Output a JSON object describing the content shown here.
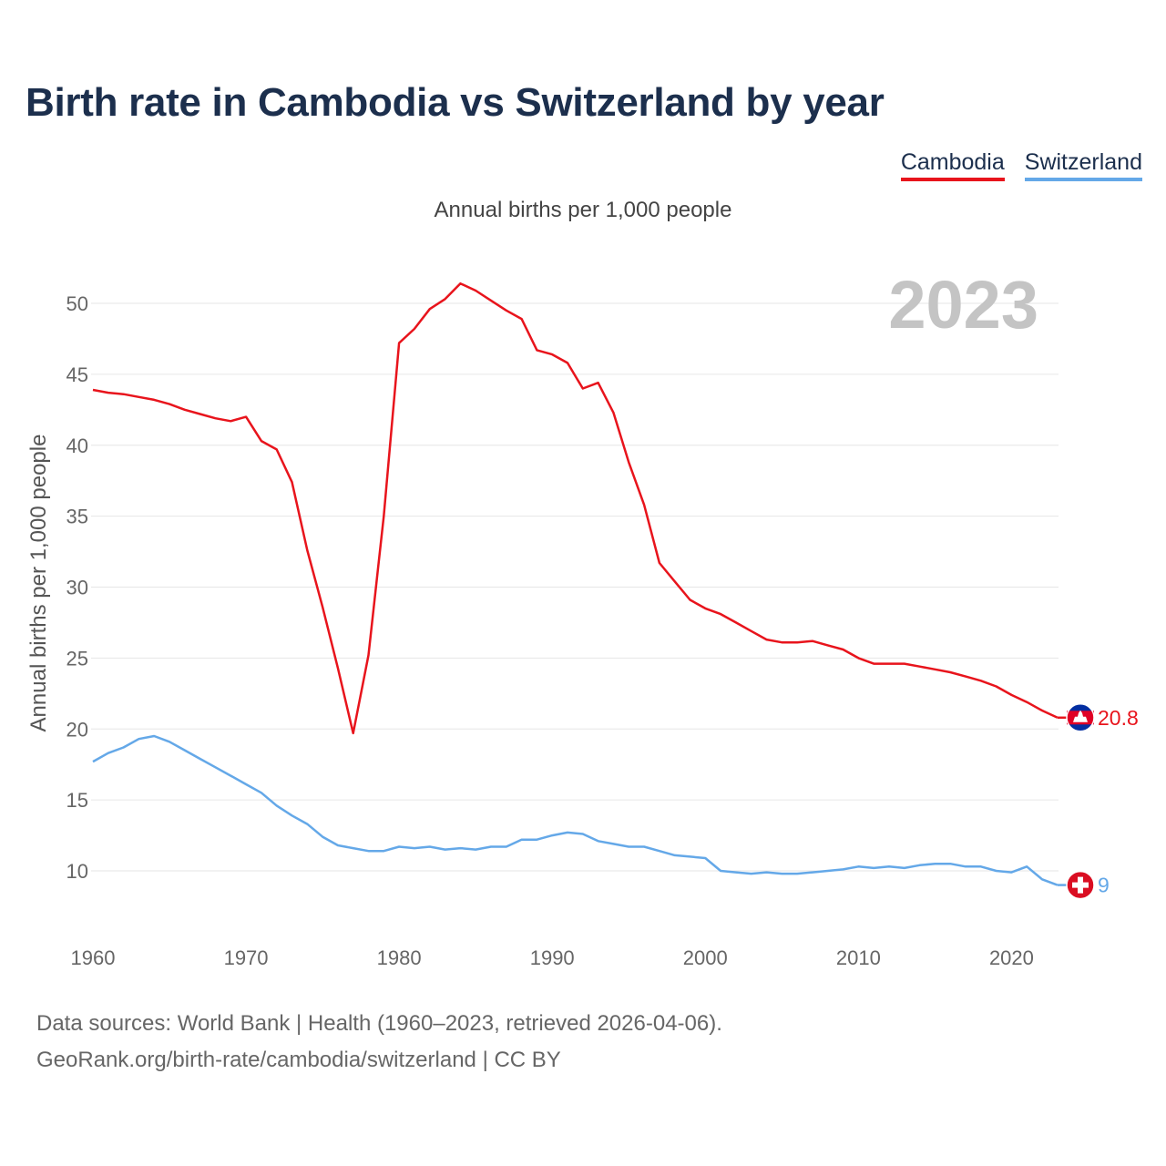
{
  "header": {
    "title": "Birth rate in Cambodia vs Switzerland by year",
    "subtitle": "Annual births per 1,000 people"
  },
  "legend": {
    "items": [
      {
        "label": "Cambodia",
        "color": "#e8141c"
      },
      {
        "label": "Switzerland",
        "color": "#64a8e8"
      }
    ]
  },
  "year_display": "2023",
  "footer": {
    "line1": "Data sources: World Bank | Health (1960–2023, retrieved 2026-04-06).",
    "line2": "GeoRank.org/birth-rate/cambodia/switzerland | CC BY"
  },
  "chart_data": {
    "type": "line",
    "title": "Birth rate in Cambodia vs Switzerland by year",
    "xlabel": "",
    "ylabel": "Annual births per 1,000 people",
    "xlim": [
      1960,
      2023
    ],
    "ylim": [
      6,
      53
    ],
    "x_ticks": [
      1960,
      1970,
      1980,
      1990,
      2000,
      2010,
      2020
    ],
    "y_ticks": [
      10,
      15,
      20,
      25,
      30,
      35,
      40,
      45,
      50
    ],
    "x": [
      1960,
      1961,
      1962,
      1963,
      1964,
      1965,
      1966,
      1967,
      1968,
      1969,
      1970,
      1971,
      1972,
      1973,
      1974,
      1975,
      1976,
      1977,
      1978,
      1979,
      1980,
      1981,
      1982,
      1983,
      1984,
      1985,
      1986,
      1987,
      1988,
      1989,
      1990,
      1991,
      1992,
      1993,
      1994,
      1995,
      1996,
      1997,
      1998,
      1999,
      2000,
      2001,
      2002,
      2003,
      2004,
      2005,
      2006,
      2007,
      2008,
      2009,
      2010,
      2011,
      2012,
      2013,
      2014,
      2015,
      2016,
      2017,
      2018,
      2019,
      2020,
      2021,
      2022,
      2023
    ],
    "series": [
      {
        "name": "Cambodia",
        "color": "#e8141c",
        "end_label": "20.8",
        "values": [
          43.9,
          43.7,
          43.6,
          43.4,
          43.2,
          42.9,
          42.5,
          42.2,
          41.9,
          41.7,
          42.0,
          40.3,
          39.7,
          37.4,
          32.6,
          28.6,
          24.3,
          19.7,
          25.2,
          35.0,
          47.2,
          48.2,
          49.6,
          50.3,
          51.4,
          50.9,
          50.2,
          49.5,
          48.9,
          46.7,
          46.4,
          45.8,
          44.0,
          44.4,
          42.3,
          38.8,
          35.8,
          31.7,
          30.4,
          29.1,
          28.5,
          28.1,
          27.5,
          26.9,
          26.3,
          26.1,
          26.1,
          26.2,
          25.9,
          25.6,
          25.0,
          24.6,
          24.6,
          24.6,
          24.4,
          24.2,
          24.0,
          23.7,
          23.4,
          23.0,
          22.4,
          21.9,
          21.3,
          20.8
        ]
      },
      {
        "name": "Switzerland",
        "color": "#64a8e8",
        "end_label": "9",
        "values": [
          17.7,
          18.3,
          18.7,
          19.3,
          19.5,
          19.1,
          18.5,
          17.9,
          17.3,
          16.7,
          16.1,
          15.5,
          14.6,
          13.9,
          13.3,
          12.4,
          11.8,
          11.6,
          11.4,
          11.4,
          11.7,
          11.6,
          11.7,
          11.5,
          11.6,
          11.5,
          11.7,
          11.7,
          12.2,
          12.2,
          12.5,
          12.7,
          12.6,
          12.1,
          11.9,
          11.7,
          11.7,
          11.4,
          11.1,
          11.0,
          10.9,
          10.0,
          9.9,
          9.8,
          9.9,
          9.8,
          9.8,
          9.9,
          10.0,
          10.1,
          10.3,
          10.2,
          10.3,
          10.2,
          10.4,
          10.5,
          10.5,
          10.3,
          10.3,
          10.0,
          9.9,
          10.3,
          9.4,
          9.0
        ]
      }
    ]
  }
}
